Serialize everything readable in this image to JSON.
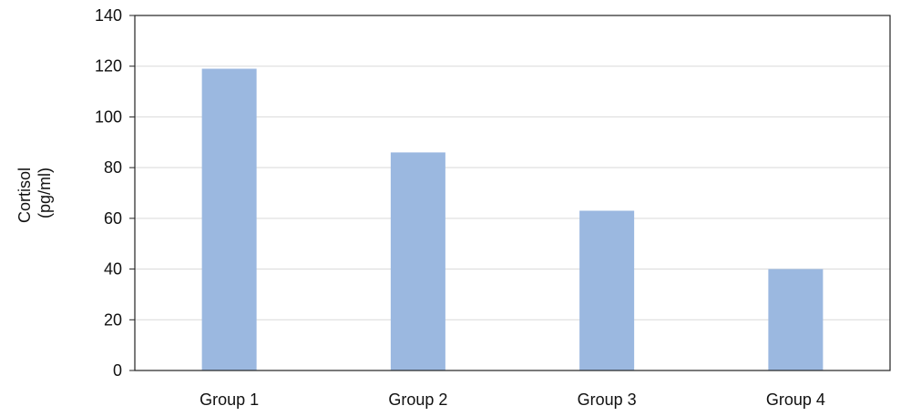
{
  "chart_data": {
    "type": "bar",
    "title": "",
    "xlabel": "",
    "ylabel": [
      "Cortisol",
      "(pg/ml)"
    ],
    "categories": [
      "Group 1",
      "Group 2",
      "Group 3",
      "Group 4"
    ],
    "values": [
      119,
      86,
      63,
      40
    ],
    "ylim": [
      0,
      140
    ],
    "yticks": [
      0,
      20,
      40,
      60,
      80,
      100,
      120,
      140
    ],
    "grid": true,
    "legend": "none",
    "colors": {
      "bar": "#9bb8e0",
      "grid": "#d9d9d9",
      "axis": "#222222"
    }
  }
}
